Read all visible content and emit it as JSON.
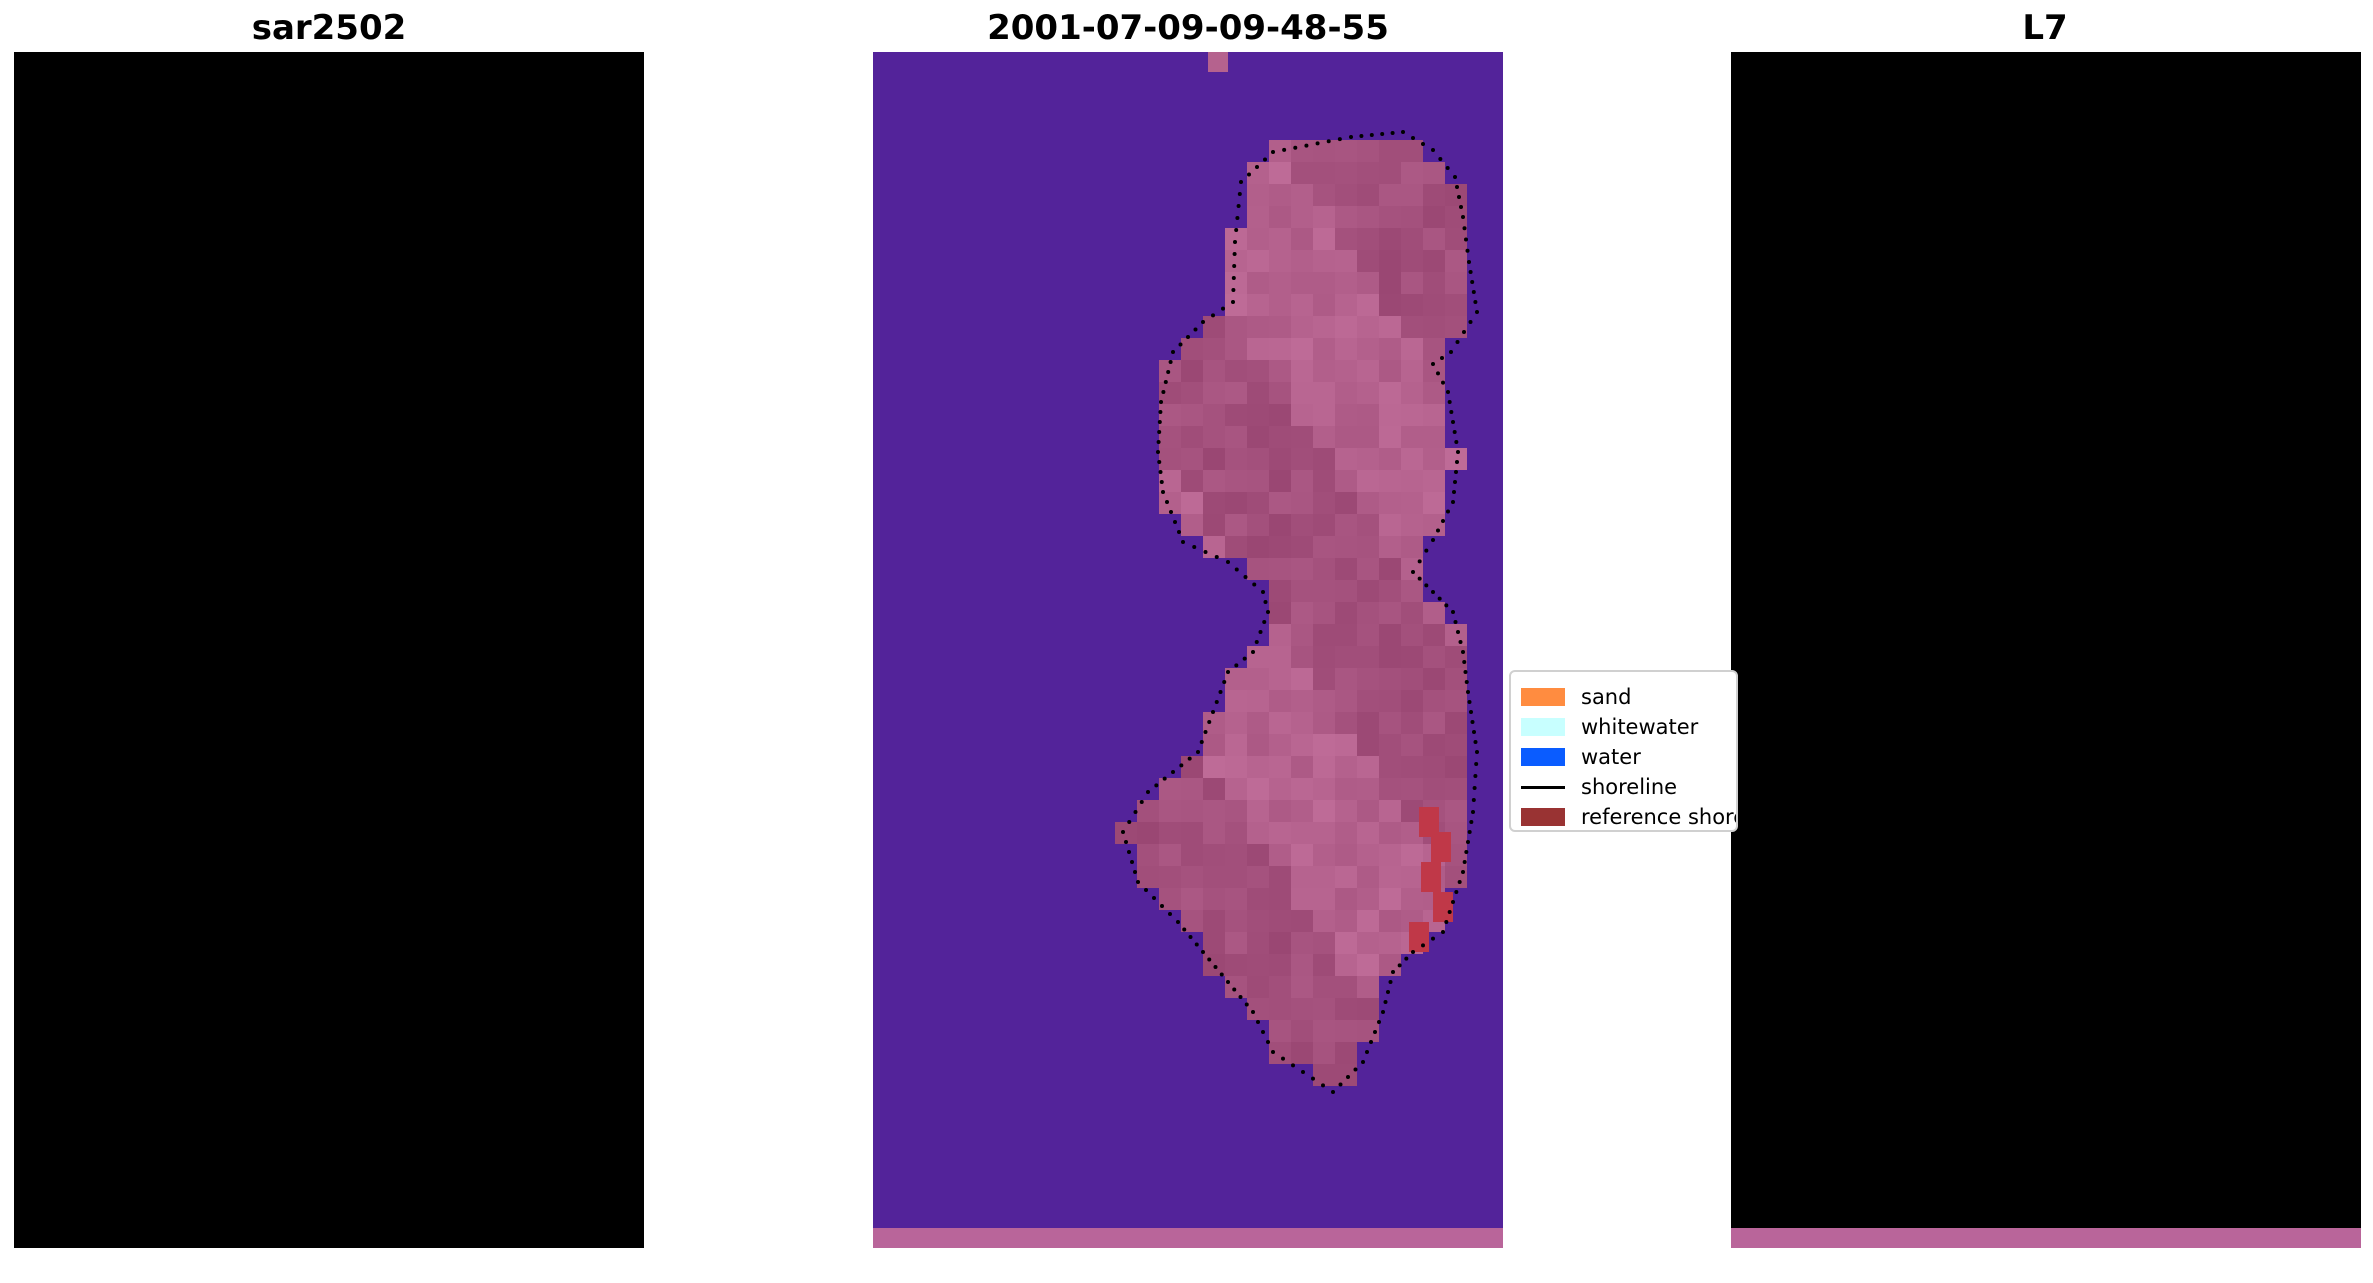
{
  "panels": [
    {
      "title": "sar2502"
    },
    {
      "title": "2001-07-09-09-48-55"
    },
    {
      "title": "L7"
    }
  ],
  "legend": {
    "items": [
      {
        "label": "sand",
        "color": "#ff8c40",
        "kind": "patch"
      },
      {
        "label": "whitewater",
        "color": "#c8ffff",
        "kind": "patch"
      },
      {
        "label": "water",
        "color": "#0a5cff",
        "kind": "patch"
      },
      {
        "label": "shoreline",
        "color": "#000000",
        "kind": "line"
      },
      {
        "label": "reference shoreline",
        "color": "#993333",
        "kind": "patch"
      }
    ]
  },
  "colors": {
    "sea_rgb": "#3565b5",
    "island_rgb": "#dcdcf0",
    "class_water": "#53239a",
    "class_sand": "#b5628e",
    "class_strip": "#b9659a",
    "index_low": "#7b22a0",
    "index_high": "#c2063c",
    "reference_marks": "#c03848"
  }
}
